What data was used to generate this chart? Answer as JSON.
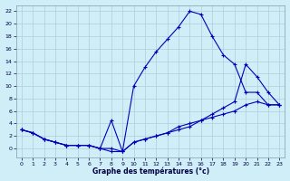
{
  "title": "Graphe des températures (°c)",
  "xlim": [
    -0.5,
    23.5
  ],
  "ylim": [
    -1.5,
    23
  ],
  "xticks": [
    0,
    1,
    2,
    3,
    4,
    5,
    6,
    7,
    8,
    9,
    10,
    11,
    12,
    13,
    14,
    15,
    16,
    17,
    18,
    19,
    20,
    21,
    22,
    23
  ],
  "yticks": [
    0,
    2,
    4,
    6,
    8,
    10,
    12,
    14,
    16,
    18,
    20,
    22
  ],
  "line_color": "#0000bb",
  "bg_color": "#d0eef8",
  "grid_color": "#b0ccd8",
  "line1_x": [
    0,
    1,
    2,
    3,
    4,
    5,
    6,
    7,
    8,
    9,
    10,
    11,
    12,
    13,
    14,
    15,
    16,
    17,
    18,
    19,
    20,
    21,
    22,
    23
  ],
  "line1_y": [
    3,
    2.5,
    1.5,
    1,
    0.5,
    0.5,
    0.5,
    0,
    -0.5,
    -0.5,
    10,
    13,
    15.5,
    17.5,
    19.5,
    22,
    21.5,
    18,
    15,
    13.5,
    9,
    9,
    7,
    7
  ],
  "line2_x": [
    0,
    1,
    2,
    3,
    4,
    5,
    6,
    7,
    8,
    9,
    10,
    11,
    12,
    13,
    14,
    15,
    16,
    17,
    18,
    19,
    20,
    21,
    22,
    23
  ],
  "line2_y": [
    3,
    2.5,
    1.5,
    1,
    0.5,
    0.5,
    0.5,
    0,
    4.5,
    -0.5,
    1,
    1.5,
    2,
    2.5,
    3,
    3.5,
    4.5,
    5.5,
    6.5,
    7.5,
    13.5,
    11.5,
    9,
    7
  ],
  "line3_x": [
    0,
    1,
    2,
    3,
    4,
    5,
    6,
    7,
    8,
    9,
    10,
    11,
    12,
    13,
    14,
    15,
    16,
    17,
    18,
    19,
    20,
    21,
    22,
    23
  ],
  "line3_y": [
    3,
    2.5,
    1.5,
    1,
    0.5,
    0.5,
    0.5,
    0,
    0,
    -0.5,
    1,
    1.5,
    2,
    2.5,
    3.5,
    4,
    4.5,
    5,
    5.5,
    6,
    7,
    7.5,
    7,
    7
  ]
}
